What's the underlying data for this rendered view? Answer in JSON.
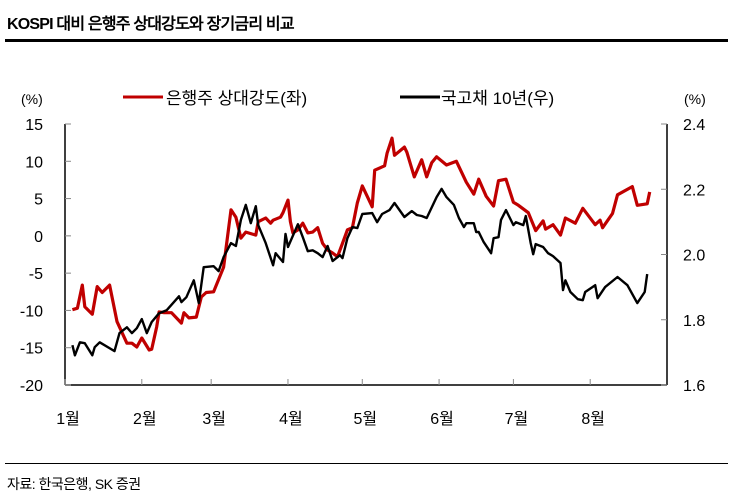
{
  "title": "KOSPI 대비 은행주 상대강도와 장기금리 비교",
  "source": "자료: 한국은행, SK 증권",
  "chart_data": {
    "type": "line",
    "title": "KOSPI 대비 은행주 상대강도와 장기금리 비교",
    "x_unit": "day of year",
    "xlim": [
      0,
      243
    ],
    "x_ticks": [
      {
        "day": 0,
        "label": "1월"
      },
      {
        "day": 31,
        "label": "2월"
      },
      {
        "day": 59,
        "label": "3월"
      },
      {
        "day": 90,
        "label": "4월"
      },
      {
        "day": 120,
        "label": "5월"
      },
      {
        "day": 151,
        "label": "6월"
      },
      {
        "day": 181,
        "label": "7월"
      },
      {
        "day": 212,
        "label": "8월"
      }
    ],
    "y_left": {
      "label": "(%)",
      "lim": [
        -20,
        15
      ],
      "ticks": [
        "15",
        "10",
        "5",
        "0",
        "-5",
        "-10",
        "-15",
        "-20"
      ],
      "tick_values": [
        15,
        10,
        5,
        0,
        -5,
        -10,
        -15,
        -20
      ]
    },
    "y_right": {
      "label": "(%)",
      "lim": [
        1.6,
        2.4
      ],
      "ticks": [
        "2.4",
        "2.2",
        "2.0",
        "1.8",
        "1.6"
      ],
      "tick_values": [
        2.4,
        2.2,
        2.0,
        1.8,
        1.6
      ]
    },
    "legend_position": "top",
    "series": [
      {
        "name": "은행주 상대강도(좌)",
        "axis": "left",
        "color": "#c00000",
        "x": [
          3,
          5,
          7,
          8,
          11,
          13,
          15,
          18,
          21,
          25,
          27,
          29,
          31,
          34,
          35,
          37,
          38,
          40,
          43,
          47,
          48,
          50,
          53,
          55,
          57,
          60,
          64,
          67,
          69,
          71,
          73,
          77,
          78,
          81,
          83,
          84,
          87,
          88,
          90,
          91,
          92,
          94,
          96,
          98,
          100,
          102,
          104,
          106,
          108,
          110,
          112,
          114,
          116,
          118,
          120,
          124,
          125,
          129,
          130,
          132,
          133,
          137,
          138,
          141,
          144,
          146,
          148,
          150,
          154,
          158,
          162,
          165,
          167,
          170,
          173,
          175,
          178,
          181,
          183,
          187,
          190,
          193,
          194,
          197,
          200,
          202,
          206,
          209,
          214,
          216,
          217,
          221,
          223,
          229,
          231,
          235,
          236
        ],
        "y": [
          -9.9,
          -9.7,
          -6.6,
          -9.5,
          -10.5,
          -6.8,
          -7.6,
          -6.6,
          -11.5,
          -14.4,
          -14.4,
          -14.9,
          -13.7,
          -15.3,
          -15.2,
          -12.2,
          -10.2,
          -10.3,
          -10.3,
          -11.7,
          -10.3,
          -11.0,
          -10.9,
          -8.2,
          -7.6,
          -7.5,
          -4.2,
          3.5,
          2.5,
          -0.3,
          0.5,
          0.1,
          1.9,
          2.4,
          1.7,
          2.1,
          2.5,
          3.1,
          4.8,
          1.9,
          0.4,
          0.8,
          1.7,
          0.4,
          0.5,
          1.1,
          -1.0,
          -1.9,
          -2.3,
          -2.8,
          -1.0,
          0.8,
          1.1,
          4.4,
          6.7,
          3.9,
          8.8,
          9.4,
          11.1,
          13.1,
          10.8,
          11.9,
          11.2,
          7.9,
          10.2,
          7.9,
          9.8,
          10.6,
          9.5,
          10.0,
          7.2,
          5.6,
          7.6,
          5.3,
          4.0,
          7.4,
          7.6,
          4.5,
          4.1,
          3.1,
          0.7,
          2.0,
          0.9,
          1.5,
          0.1,
          2.4,
          1.7,
          3.7,
          1.5,
          2.1,
          1.1,
          3.0,
          5.5,
          6.6,
          4.1,
          4.3,
          5.9
        ]
      },
      {
        "name": "국고채 10년(우)",
        "axis": "right",
        "color": "#000000",
        "x": [
          3,
          4,
          6,
          8,
          11,
          12,
          14,
          20,
          22,
          25,
          27,
          29,
          31,
          33,
          35,
          38,
          41,
          46,
          47,
          49,
          52,
          54,
          56,
          60,
          62,
          64,
          67,
          69,
          71,
          73,
          75,
          77,
          78,
          81,
          84,
          85,
          88,
          89,
          90,
          94,
          96,
          98,
          100,
          102,
          104,
          106,
          108,
          111,
          112,
          114,
          116,
          118,
          120,
          124,
          126,
          128,
          131,
          133,
          137,
          140,
          142,
          144,
          146,
          150,
          152,
          154,
          157,
          159,
          161,
          162,
          165,
          166,
          167,
          169,
          172,
          173,
          175,
          176,
          178,
          181,
          182,
          185,
          186,
          188,
          189,
          190,
          193,
          195,
          197,
          200,
          201,
          202,
          204,
          207,
          209,
          210,
          214,
          215,
          218,
          223,
          227,
          231,
          234,
          235
        ],
        "y": [
          1.722,
          1.691,
          1.731,
          1.728,
          1.691,
          1.716,
          1.731,
          1.704,
          1.759,
          1.777,
          1.759,
          1.774,
          1.802,
          1.759,
          1.793,
          1.82,
          1.829,
          1.872,
          1.854,
          1.869,
          1.921,
          1.851,
          1.961,
          1.964,
          1.949,
          1.992,
          2.035,
          2.026,
          2.106,
          2.152,
          2.096,
          2.148,
          2.09,
          2.035,
          1.967,
          2.004,
          1.977,
          2.063,
          2.023,
          2.093,
          2.053,
          2.01,
          2.013,
          2.004,
          1.992,
          2.026,
          1.98,
          1.998,
          1.989,
          2.05,
          2.084,
          2.081,
          2.124,
          2.127,
          2.099,
          2.124,
          2.136,
          2.158,
          2.115,
          2.133,
          2.121,
          2.118,
          2.112,
          2.176,
          2.201,
          2.176,
          2.152,
          2.112,
          2.084,
          2.096,
          2.096,
          2.069,
          2.069,
          2.038,
          2.004,
          2.05,
          2.053,
          2.106,
          2.136,
          2.09,
          2.099,
          2.09,
          2.118,
          2.035,
          2.001,
          2.032,
          2.023,
          2.004,
          1.995,
          1.974,
          1.891,
          1.921,
          1.885,
          1.863,
          1.86,
          1.885,
          1.906,
          1.866,
          1.9,
          1.931,
          1.906,
          1.851,
          1.885,
          1.94
        ]
      }
    ]
  }
}
